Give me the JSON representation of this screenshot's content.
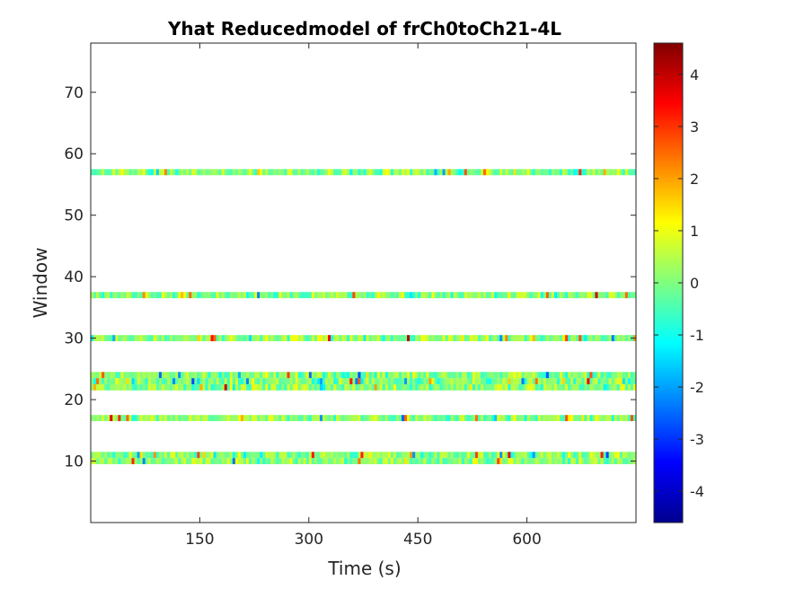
{
  "chart_data": {
    "type": "heatmap",
    "title": "Yhat Reducedmodel of frCh0toCh21-4L",
    "xlabel": "Time (s)",
    "ylabel": "Window",
    "xlim": [
      0,
      750
    ],
    "ylim": [
      0,
      78
    ],
    "x_ticks": [
      150,
      300,
      450,
      600
    ],
    "x_tick_labels": [
      "150",
      "300",
      "450",
      "600"
    ],
    "y_ticks": [
      10,
      20,
      30,
      40,
      50,
      60,
      70
    ],
    "y_tick_labels": [
      "10",
      "20",
      "30",
      "40",
      "50",
      "60",
      "70"
    ],
    "colormap": "jet",
    "clim": [
      -4.6,
      4.6
    ],
    "colorbar_ticks": [
      -4,
      -3,
      -2,
      -1,
      0,
      1,
      2,
      3,
      4
    ],
    "colorbar_tick_labels": [
      "-4",
      "-3",
      "-2",
      "-1",
      "0",
      "1",
      "2",
      "3",
      "4"
    ],
    "filled_windows": [
      10,
      11,
      17,
      22,
      23,
      24,
      30,
      37,
      57
    ],
    "notes_visible": "Only windows 10-11, 17, 22-24, 30, 37 and 57 contain values; all other windows are blank (NaN)."
  }
}
